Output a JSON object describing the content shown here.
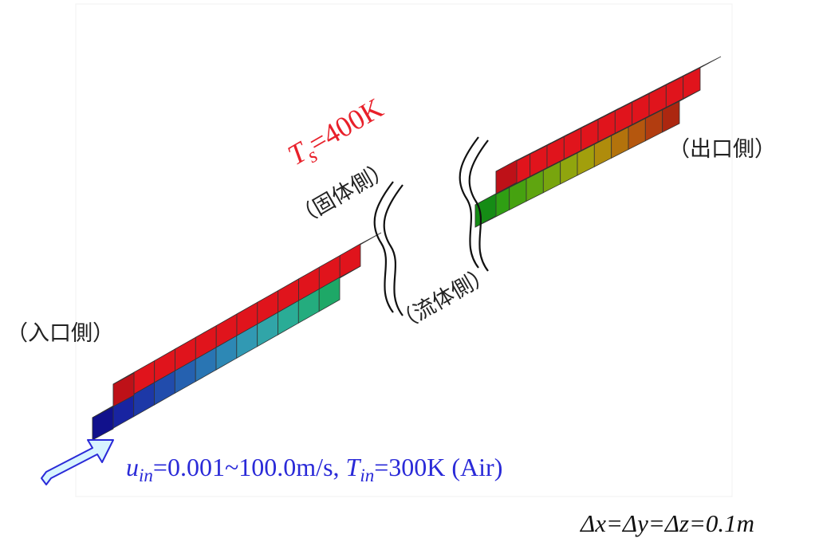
{
  "labels": {
    "inlet_side": "（入口側）",
    "outlet_side": "（出口側）",
    "solid_side": "（固体側）",
    "fluid_side": "（流体側）"
  },
  "solid_temp": {
    "symbol": "T",
    "sub": "s",
    "value": "=400K"
  },
  "inflow": {
    "u_symbol": "u",
    "u_sub": "in",
    "u_value": "=0.001~100.0m/s, ",
    "t_symbol": "T",
    "t_sub": "in",
    "t_value": "=300K (Air)"
  },
  "grid_spacing": "Δx=Δy=Δz=0.1m",
  "colors": {
    "solid": "#e0141c",
    "label_blue": "#2a2ad8",
    "label_red": "#e8202a",
    "arrow_fill": "#d8f4ff",
    "arrow_stroke": "#2a2ad8"
  },
  "fluid_colormap": {
    "inlet_segment": [
      "#1818c8",
      "#1f2ecf",
      "#2548d6",
      "#2a62dd",
      "#2f7ce2",
      "#3596e6",
      "#3aaee8",
      "#3fc4e6",
      "#3fd4d8",
      "#36dcc0",
      "#2edca2",
      "#27d884"
    ],
    "outlet_segment": [
      "#1ec81e",
      "#3ccc18",
      "#5ad014",
      "#7ad414",
      "#9ad412",
      "#b8d412",
      "#d0cc10",
      "#e0b410",
      "#e69410",
      "#e87012",
      "#e44e14",
      "#dc3214"
    ]
  }
}
